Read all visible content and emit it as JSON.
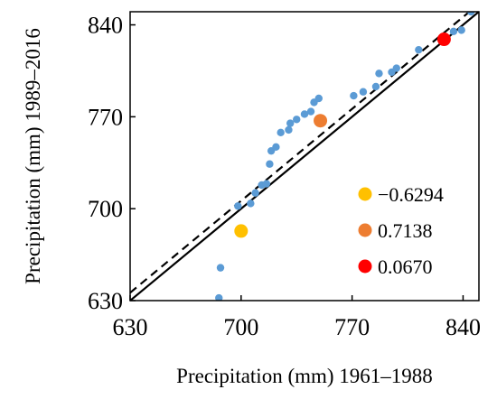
{
  "chart_data": {
    "type": "scatter",
    "title": "",
    "xlabel": "Precipitation (mm) 1961–1988",
    "ylabel": "Precipitation (mm) 1989–2016",
    "xlim": [
      630,
      850
    ],
    "ylim": [
      630,
      850
    ],
    "x_ticks": [
      630,
      700,
      770,
      840
    ],
    "y_ticks": [
      630,
      700,
      770,
      840
    ],
    "x_tick_labels": [
      "630",
      "700",
      "770",
      "840"
    ],
    "y_tick_labels": [
      "630",
      "700",
      "770",
      "840"
    ],
    "grid": false,
    "legend_position": "bottom-right",
    "reference_lines": [
      {
        "style": "solid",
        "color": "#000000",
        "slope": 1,
        "intercept": 0
      },
      {
        "style": "dashed",
        "color": "#000000",
        "slope": 1,
        "intercept": 6
      }
    ],
    "series": [
      {
        "color": "#5b9bd5",
        "points": [
          [
            686,
            632
          ],
          [
            687,
            655
          ],
          [
            698,
            702
          ],
          [
            706,
            704
          ],
          [
            709,
            712
          ],
          [
            713,
            718
          ],
          [
            716,
            719
          ],
          [
            718,
            734
          ],
          [
            719,
            744
          ],
          [
            722,
            747
          ],
          [
            725,
            758
          ],
          [
            730,
            760
          ],
          [
            731,
            765
          ],
          [
            735,
            768
          ],
          [
            740,
            772
          ],
          [
            744,
            774
          ],
          [
            746,
            781
          ],
          [
            749,
            784
          ],
          [
            771,
            786
          ],
          [
            777,
            789
          ],
          [
            785,
            793
          ],
          [
            787,
            803
          ],
          [
            795,
            804
          ],
          [
            798,
            807
          ],
          [
            812,
            821
          ],
          [
            834,
            835
          ],
          [
            839,
            836
          ],
          [
            845,
            850
          ]
        ]
      },
      {
        "name": "−0.6294",
        "color": "#ffc000",
        "points": [
          [
            700,
            683
          ]
        ]
      },
      {
        "name": "0.7138",
        "color": "#ed7d31",
        "points": [
          [
            750,
            767
          ]
        ]
      },
      {
        "name": "0.0670",
        "color": "#ff0000",
        "points": [
          [
            828,
            829
          ]
        ]
      }
    ]
  }
}
